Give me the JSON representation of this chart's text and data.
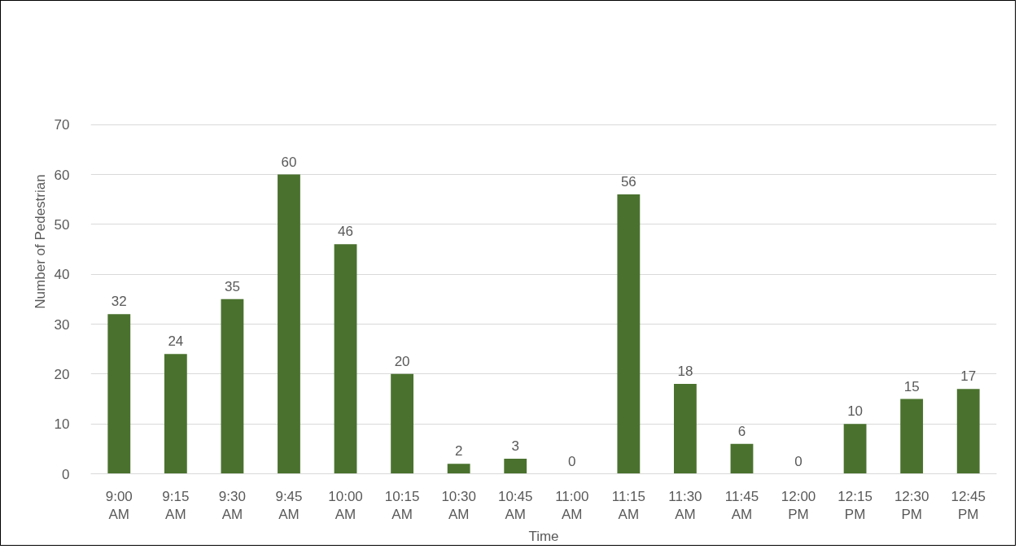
{
  "chart_data": {
    "type": "bar",
    "xlabel": "Time",
    "ylabel": "Number of Pedestrian",
    "categories": [
      "9:00 AM",
      "9:15 AM",
      "9:30 AM",
      "9:45 AM",
      "10:00 AM",
      "10:15 AM",
      "10:30 AM",
      "10:45 AM",
      "11:00 AM",
      "11:15 AM",
      "11:30 AM",
      "11:45 AM",
      "12:00 PM",
      "12:15 PM",
      "12:30 PM",
      "12:45 PM"
    ],
    "values": [
      32,
      24,
      35,
      60,
      46,
      20,
      2,
      3,
      0,
      56,
      18,
      6,
      0,
      10,
      15,
      17
    ],
    "color": "#4a722e",
    "ylim": [
      0,
      70
    ],
    "yticks": [
      0,
      10,
      20,
      30,
      40,
      50,
      60,
      70
    ],
    "grid": "y",
    "data_labels": true
  }
}
